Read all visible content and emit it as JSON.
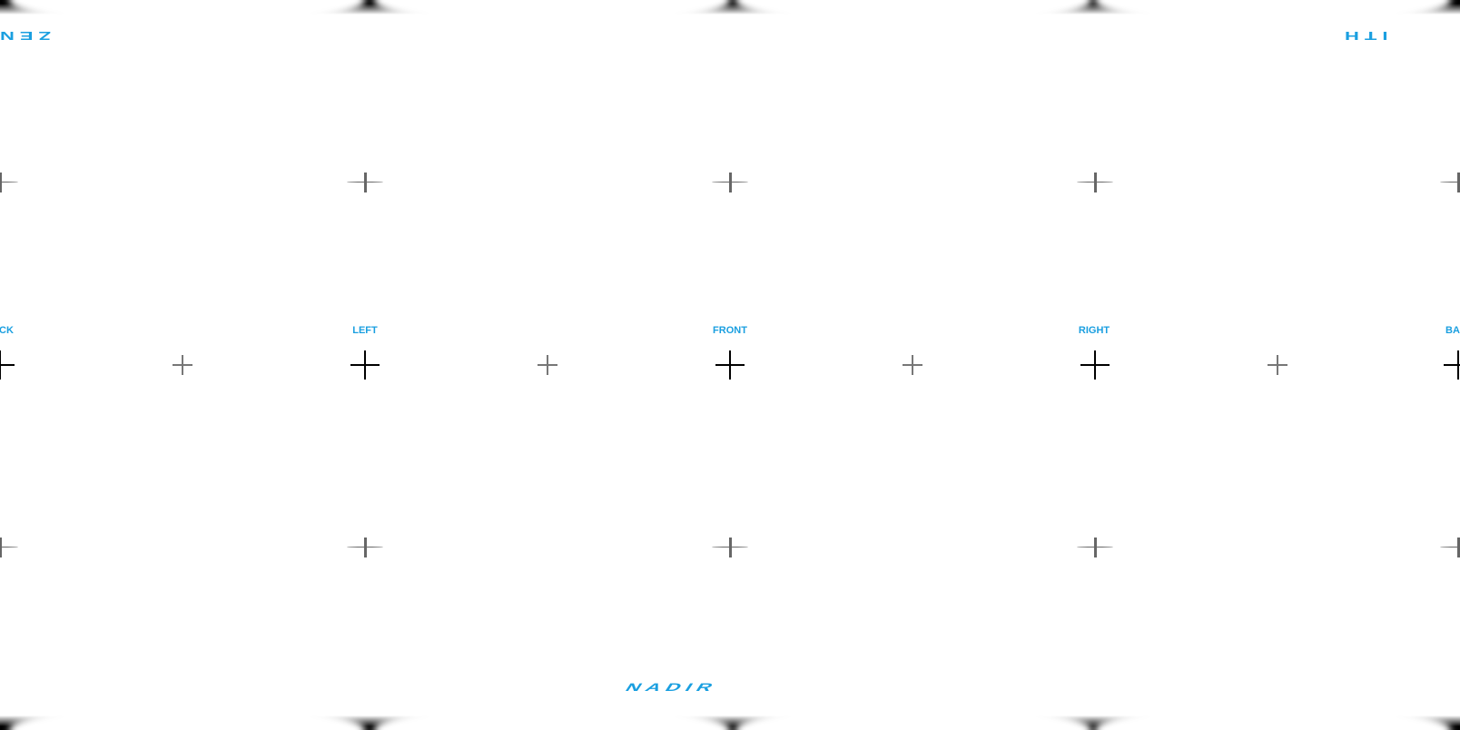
{
  "labels": {
    "back_left": "CK",
    "left": "LEFT",
    "front": "FRONT",
    "right": "RIGHT",
    "back_right": "BA",
    "zenith_left": "ZEN",
    "zenith_right": "ITH",
    "nadir": "NADIR"
  },
  "colors": {
    "label": "#1a9fe0",
    "major_cross": "#000000",
    "minor_cross": "#777777",
    "background": "#ffffff"
  }
}
